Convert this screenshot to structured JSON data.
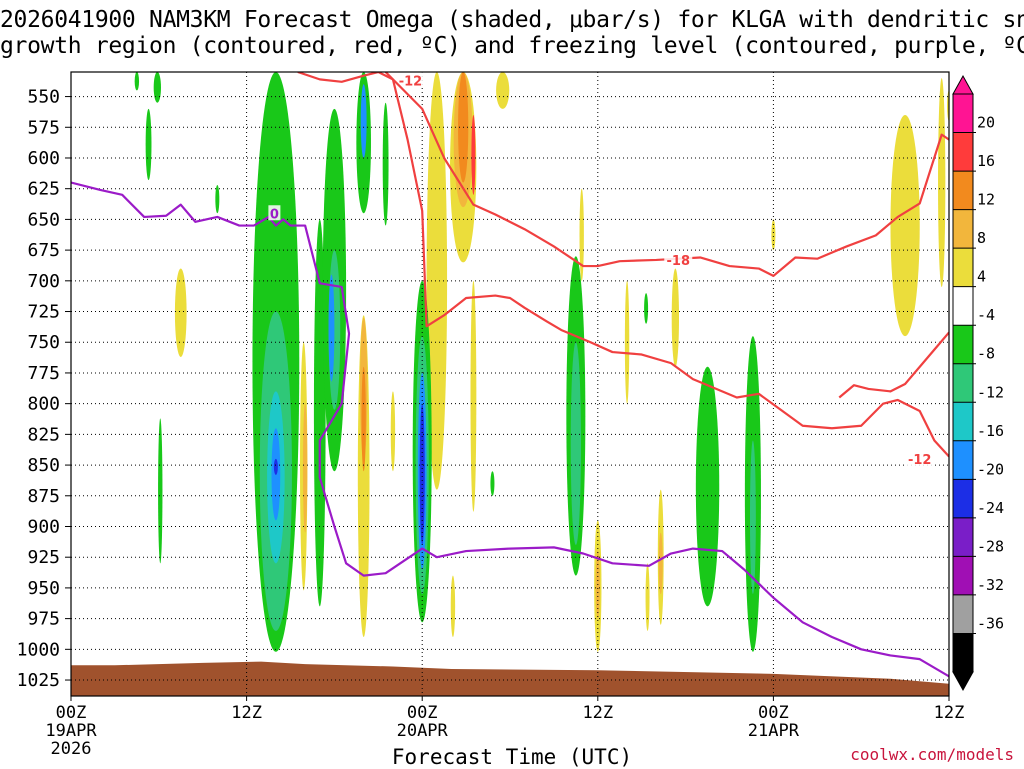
{
  "title_line1": "2026041900 NAM3KM Forecast Omega (shaded, μbar/s) for KLGA with dendritic snow",
  "title_line2": "growth region (contoured, red, ºC) and freezing level (contoured, purple, ºC)",
  "credit": "coolwx.com/models",
  "chart_data": {
    "type": "heatmap",
    "title": "2026041900 NAM3KM Forecast Omega (shaded, μbar/s) for KLGA with dendritic snow growth region (contoured, red, ºC) and freezing level (contoured, purple, ºC)",
    "xlabel": "Forecast Time (UTC)",
    "ylabel": "",
    "xlim": [
      0,
      60
    ],
    "ylim": [
      530,
      1038
    ],
    "x_ticks": [
      {
        "hour": 0,
        "label": "00Z",
        "sub1": "19APR",
        "sub2": "2026"
      },
      {
        "hour": 12,
        "label": "12Z",
        "sub1": "",
        "sub2": ""
      },
      {
        "hour": 24,
        "label": "00Z",
        "sub1": "20APR",
        "sub2": ""
      },
      {
        "hour": 36,
        "label": "12Z",
        "sub1": "",
        "sub2": ""
      },
      {
        "hour": 48,
        "label": "00Z",
        "sub1": "21APR",
        "sub2": ""
      },
      {
        "hour": 60,
        "label": "12Z",
        "sub1": "",
        "sub2": ""
      }
    ],
    "y_ticks": [
      550,
      575,
      600,
      625,
      650,
      675,
      700,
      725,
      750,
      775,
      800,
      825,
      850,
      875,
      900,
      925,
      950,
      975,
      1000,
      1025
    ],
    "colorbar": {
      "labels": [
        "20",
        "16",
        "12",
        "8",
        "4",
        "-4",
        "-8",
        "-12",
        "-16",
        "-20",
        "-24",
        "-28",
        "-32",
        "-36"
      ],
      "bins": [
        {
          "label": "20",
          "color": "#ff1493"
        },
        {
          "label": "16",
          "color": "#ff3b3b"
        },
        {
          "label": "12",
          "color": "#f28a1e"
        },
        {
          "label": "8",
          "color": "#f2b63c"
        },
        {
          "label": "4",
          "color": "#ebdd3b"
        },
        {
          "label": "-4",
          "color": "#ffffff"
        },
        {
          "label": "-8",
          "color": "#19c819"
        },
        {
          "label": "-12",
          "color": "#2fc878"
        },
        {
          "label": "-16",
          "color": "#1ec8c8"
        },
        {
          "label": "-20",
          "color": "#1e90ff"
        },
        {
          "label": "-24",
          "color": "#1c2ee6"
        },
        {
          "label": "-28",
          "color": "#7a1ec8"
        },
        {
          "label": "-32",
          "color": "#a00fb4"
        },
        {
          "label": "-36",
          "color": "#a0a0a0"
        },
        {
          "label": "",
          "color": "#000000"
        }
      ]
    },
    "omega_blobs": [
      {
        "hour": 5.9,
        "p_top": 530,
        "p_bot": 555,
        "width_h": 0.5,
        "color": "#19c819"
      },
      {
        "hour": 4.5,
        "p_top": 530,
        "p_bot": 545,
        "width_h": 0.3,
        "color": "#19c819"
      },
      {
        "hour": 5.3,
        "p_top": 560,
        "p_bot": 618,
        "width_h": 0.4,
        "color": "#19c819"
      },
      {
        "hour": 7.5,
        "p_top": 690,
        "p_bot": 762,
        "width_h": 0.8,
        "color": "#ebdd3b"
      },
      {
        "hour": 6.1,
        "p_top": 812,
        "p_bot": 930,
        "width_h": 0.3,
        "color": "#19c819"
      },
      {
        "hour": 10.0,
        "p_top": 622,
        "p_bot": 645,
        "width_h": 0.2,
        "color": "#19c819"
      },
      {
        "hour": 14.0,
        "p_top": 530,
        "p_bot": 1002,
        "width_h": 3.2,
        "color": "#19c819"
      },
      {
        "hour": 14.0,
        "p_top": 725,
        "p_bot": 985,
        "width_h": 2.2,
        "color": "#2fc878"
      },
      {
        "hour": 14.0,
        "p_top": 790,
        "p_bot": 930,
        "width_h": 1.2,
        "color": "#1ec8c8"
      },
      {
        "hour": 14.0,
        "p_top": 820,
        "p_bot": 895,
        "width_h": 0.6,
        "color": "#1e90ff"
      },
      {
        "hour": 14.0,
        "p_top": 845,
        "p_bot": 858,
        "width_h": 0.2,
        "color": "#1c2ee6"
      },
      {
        "hour": 15.9,
        "p_top": 750,
        "p_bot": 952,
        "width_h": 0.5,
        "color": "#ebdd3b"
      },
      {
        "hour": 16.0,
        "p_top": 800,
        "p_bot": 905,
        "width_h": 0.3,
        "color": "#f2b63c"
      },
      {
        "hour": 17.0,
        "p_top": 650,
        "p_bot": 965,
        "width_h": 0.8,
        "color": "#19c819"
      },
      {
        "hour": 18.0,
        "p_top": 560,
        "p_bot": 855,
        "width_h": 1.6,
        "color": "#19c819"
      },
      {
        "hour": 18.0,
        "p_top": 675,
        "p_bot": 805,
        "width_h": 0.8,
        "color": "#2fc878"
      },
      {
        "hour": 17.8,
        "p_top": 695,
        "p_bot": 782,
        "width_h": 0.4,
        "color": "#1e90ff"
      },
      {
        "hour": 20.0,
        "p_top": 530,
        "p_bot": 645,
        "width_h": 1.0,
        "color": "#19c819"
      },
      {
        "hour": 20.0,
        "p_top": 540,
        "p_bot": 600,
        "width_h": 0.4,
        "color": "#1e90ff"
      },
      {
        "hour": 21.5,
        "p_top": 555,
        "p_bot": 655,
        "width_h": 0.4,
        "color": "#19c819"
      },
      {
        "hour": 20.0,
        "p_top": 728,
        "p_bot": 990,
        "width_h": 0.8,
        "color": "#ebdd3b"
      },
      {
        "hour": 20.0,
        "p_top": 730,
        "p_bot": 845,
        "width_h": 0.5,
        "color": "#f2b63c"
      },
      {
        "hour": 20.0,
        "p_top": 770,
        "p_bot": 855,
        "width_h": 0.3,
        "color": "#f28a1e"
      },
      {
        "hour": 22.0,
        "p_top": 790,
        "p_bot": 855,
        "width_h": 0.3,
        "color": "#ebdd3b"
      },
      {
        "hour": 25.0,
        "p_top": 530,
        "p_bot": 870,
        "width_h": 1.4,
        "color": "#ebdd3b"
      },
      {
        "hour": 24.0,
        "p_top": 700,
        "p_bot": 978,
        "width_h": 1.3,
        "color": "#19c819"
      },
      {
        "hour": 24.0,
        "p_top": 745,
        "p_bot": 955,
        "width_h": 0.9,
        "color": "#2fc878"
      },
      {
        "hour": 24.0,
        "p_top": 775,
        "p_bot": 935,
        "width_h": 0.6,
        "color": "#1e90ff"
      },
      {
        "hour": 24.0,
        "p_top": 800,
        "p_bot": 915,
        "width_h": 0.35,
        "color": "#1c2ee6"
      },
      {
        "hour": 26.8,
        "p_top": 530,
        "p_bot": 685,
        "width_h": 1.8,
        "color": "#ebdd3b"
      },
      {
        "hour": 26.8,
        "p_top": 530,
        "p_bot": 640,
        "width_h": 1.3,
        "color": "#f2b63c"
      },
      {
        "hour": 26.8,
        "p_top": 530,
        "p_bot": 620,
        "width_h": 0.7,
        "color": "#f28a1e"
      },
      {
        "hour": 27.5,
        "p_top": 565,
        "p_bot": 630,
        "width_h": 0.2,
        "color": "#ff3b3b"
      },
      {
        "hour": 29.5,
        "p_top": 530,
        "p_bot": 560,
        "width_h": 0.9,
        "color": "#ebdd3b"
      },
      {
        "hour": 27.5,
        "p_top": 700,
        "p_bot": 888,
        "width_h": 0.4,
        "color": "#ebdd3b"
      },
      {
        "hour": 26.1,
        "p_top": 940,
        "p_bot": 990,
        "width_h": 0.3,
        "color": "#ebdd3b"
      },
      {
        "hour": 28.8,
        "p_top": 855,
        "p_bot": 875,
        "width_h": 0.1,
        "color": "#19c819"
      },
      {
        "hour": 34.9,
        "p_top": 625,
        "p_bot": 700,
        "width_h": 0.3,
        "color": "#ebdd3b"
      },
      {
        "hour": 34.5,
        "p_top": 680,
        "p_bot": 940,
        "width_h": 1.3,
        "color": "#19c819"
      },
      {
        "hour": 34.5,
        "p_top": 750,
        "p_bot": 915,
        "width_h": 0.7,
        "color": "#2fc878"
      },
      {
        "hour": 36.0,
        "p_top": 895,
        "p_bot": 1002,
        "width_h": 0.5,
        "color": "#ebdd3b"
      },
      {
        "hour": 36.0,
        "p_top": 920,
        "p_bot": 975,
        "width_h": 0.3,
        "color": "#f2b63c"
      },
      {
        "hour": 38.0,
        "p_top": 700,
        "p_bot": 800,
        "width_h": 0.3,
        "color": "#ebdd3b"
      },
      {
        "hour": 39.3,
        "p_top": 710,
        "p_bot": 735,
        "width_h": 0.2,
        "color": "#19c819"
      },
      {
        "hour": 39.4,
        "p_top": 930,
        "p_bot": 985,
        "width_h": 0.2,
        "color": "#ebdd3b"
      },
      {
        "hour": 41.3,
        "p_top": 690,
        "p_bot": 770,
        "width_h": 0.5,
        "color": "#ebdd3b"
      },
      {
        "hour": 40.3,
        "p_top": 870,
        "p_bot": 980,
        "width_h": 0.4,
        "color": "#ebdd3b"
      },
      {
        "hour": 40.3,
        "p_top": 905,
        "p_bot": 955,
        "width_h": 0.25,
        "color": "#f2b63c"
      },
      {
        "hour": 43.5,
        "p_top": 770,
        "p_bot": 965,
        "width_h": 1.6,
        "color": "#19c819"
      },
      {
        "hour": 46.6,
        "p_top": 745,
        "p_bot": 1002,
        "width_h": 1.1,
        "color": "#19c819"
      },
      {
        "hour": 46.6,
        "p_top": 830,
        "p_bot": 955,
        "width_h": 0.4,
        "color": "#2fc878"
      },
      {
        "hour": 48.0,
        "p_top": 650,
        "p_bot": 675,
        "width_h": 0.15,
        "color": "#ebdd3b"
      },
      {
        "hour": 57.0,
        "p_top": 565,
        "p_bot": 745,
        "width_h": 2.0,
        "color": "#ebdd3b"
      },
      {
        "hour": 59.5,
        "p_top": 535,
        "p_bot": 705,
        "width_h": 0.5,
        "color": "#ebdd3b"
      },
      {
        "hour": 60.0,
        "p_top": 545,
        "p_bot": 570,
        "width_h": 0.2,
        "color": "#ebdd3b"
      }
    ],
    "terrain": {
      "color": "#a0522d",
      "hours": [
        0,
        3,
        9,
        13,
        16,
        22,
        26,
        36,
        48,
        56,
        60
      ],
      "pressure": [
        1013,
        1013,
        1011,
        1010,
        1012,
        1014,
        1016,
        1017,
        1020,
        1024,
        1028
      ]
    },
    "contours": [
      {
        "name": "dgz-upper-12",
        "color": "#f04040",
        "label": "-12",
        "label_hour": 23.2,
        "label_p": 537,
        "hours": [
          15.5,
          17.0,
          18.5,
          20.0,
          21.0,
          22.0
        ],
        "pressure": [
          530,
          536,
          538,
          533,
          530,
          536
        ]
      },
      {
        "name": "dgz-upper-12b",
        "color": "#f04040",
        "hours": [
          22.0,
          23.0,
          24.0,
          24.3,
          25.5,
          27.0,
          29.0,
          30.0,
          31.0,
          32.5,
          33.5,
          35.5,
          37.0,
          39.0,
          41.0,
          42.5,
          44.5,
          45.5,
          47.0,
          48.5,
          50.0,
          52.0,
          54.0,
          55.5,
          56.5,
          58.0,
          59.0,
          60.0
        ],
        "pressure": [
          536,
          585,
          643,
          737,
          728,
          714,
          712,
          714,
          722,
          733,
          740,
          750,
          758,
          760,
          767,
          780,
          790,
          795,
          792,
          805,
          818,
          820,
          818,
          800,
          797,
          806,
          830,
          843
        ]
      },
      {
        "name": "dgz-lower-12",
        "color": "#f04040",
        "label": "-12",
        "label_hour": 58.0,
        "label_p": 845,
        "hours": [
          52.5,
          53.5,
          54.5,
          56.0,
          57.0,
          59.0,
          60.0
        ],
        "pressure": [
          795,
          785,
          788,
          790,
          784,
          756,
          742
        ]
      },
      {
        "name": "dgz-upper-18",
        "color": "#f04040",
        "label": "-18",
        "label_hour": 41.5,
        "label_p": 683,
        "hours": [
          21.5,
          24.0,
          25.5,
          27.5,
          29.0,
          31.0,
          33.0,
          35.0,
          36.0,
          37.5,
          40.0,
          43.0,
          45.0,
          47.0,
          48.0,
          49.5,
          51.0,
          53.0,
          55.0,
          56.5,
          58.0,
          59.5,
          60.0
        ],
        "pressure": [
          530,
          560,
          600,
          638,
          646,
          658,
          672,
          688,
          688,
          684,
          683,
          681,
          688,
          690,
          696,
          681,
          682,
          672,
          663,
          648,
          637,
          581,
          585
        ]
      },
      {
        "name": "freezing-level",
        "color": "#9b1bc8",
        "label": "0",
        "label_hour": 13.9,
        "label_p": 645,
        "hours": [
          0,
          2,
          3.5,
          5,
          6.5,
          7.5,
          8.5,
          10,
          11.5,
          12.5,
          13.5,
          14,
          14.5,
          15,
          16.0,
          17.0,
          18.5,
          19.0,
          18.5,
          17.0,
          17.0,
          18.0,
          18.8,
          20.0,
          21.5,
          22.5,
          24.0,
          25.0,
          27.0,
          30.0,
          33.0,
          35.0,
          37.0,
          39.5,
          41.0,
          42.5,
          44.5,
          46.0,
          48.0,
          50.0,
          52.0,
          54.0,
          56.0,
          58.0,
          60.0
        ],
        "pressure": [
          620,
          626,
          630,
          648,
          647,
          638,
          652,
          648,
          655,
          655,
          648,
          655,
          650,
          655,
          655,
          702,
          705,
          743,
          800,
          830,
          860,
          900,
          930,
          940,
          938,
          930,
          918,
          925,
          920,
          918,
          917,
          922,
          930,
          932,
          922,
          918,
          920,
          935,
          958,
          978,
          990,
          1000,
          1005,
          1008,
          1022
        ]
      }
    ]
  }
}
